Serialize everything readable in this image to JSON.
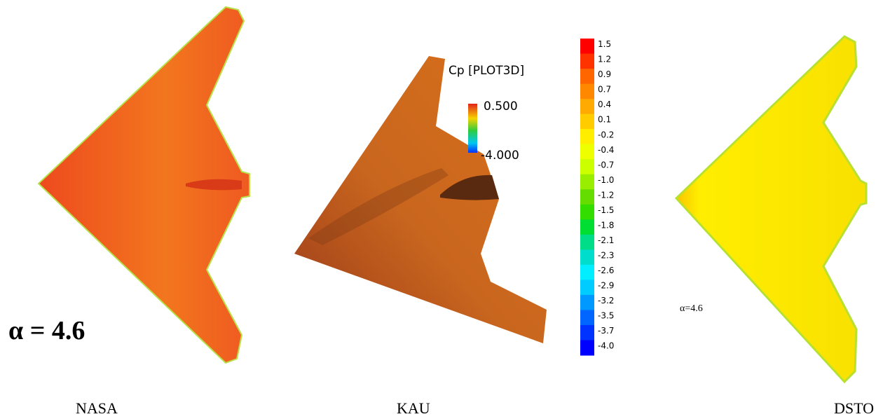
{
  "panels": [
    {
      "caption": "NASA",
      "alpha_label": "α = 4.6"
    },
    {
      "caption": "KAU",
      "legend_title": "Cp [PLOT3D]",
      "legend_max": "0.500",
      "legend_min": "-4.000"
    },
    {
      "caption": "DSTO",
      "alpha_label": "α=4.6"
    }
  ],
  "colorbar": {
    "labels": [
      "1.5",
      "1.2",
      "0.9",
      "0.7",
      "0.4",
      "0.1",
      "-0.2",
      "-0.4",
      "-0.7",
      "-1.0",
      "-1.2",
      "-1.5",
      "-1.8",
      "-2.1",
      "-2.3",
      "-2.6",
      "-2.9",
      "-3.2",
      "-3.5",
      "-3.7",
      "-4.0"
    ]
  }
}
